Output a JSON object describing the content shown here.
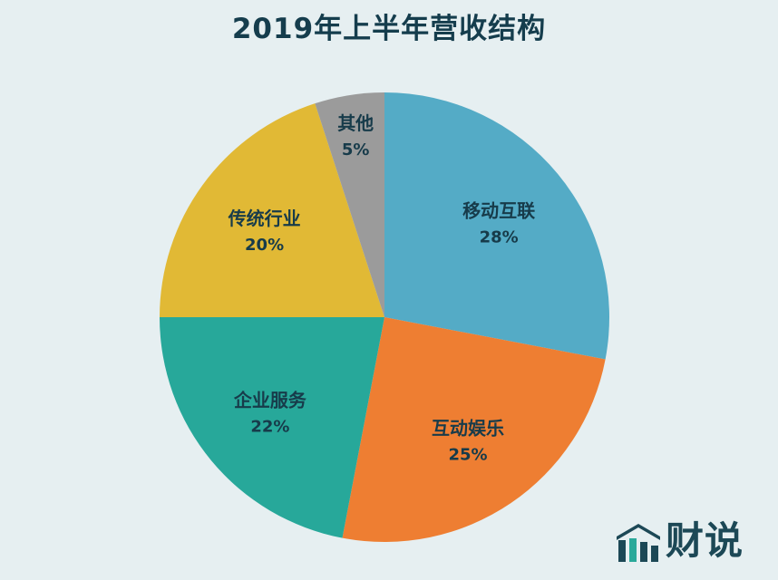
{
  "title": "2019年上半年营收结构",
  "brand": {
    "text": "财说",
    "icon": "bar-chart-logo-icon",
    "colors": [
      "#1c4856",
      "#2aa99a"
    ]
  },
  "chart_data": {
    "type": "pie",
    "title": "2019年上半年营收结构",
    "start_angle_deg": 0,
    "direction": "clockwise",
    "slices": [
      {
        "label": "移动互联",
        "value": 28,
        "value_label": "28%",
        "color": "#54abc6"
      },
      {
        "label": "互动娱乐",
        "value": 25,
        "value_label": "25%",
        "color": "#ee7e32"
      },
      {
        "label": "企业服务",
        "value": 22,
        "value_label": "22%",
        "color": "#27a89a"
      },
      {
        "label": "传统行业",
        "value": 20,
        "value_label": "20%",
        "color": "#e1b935"
      },
      {
        "label": "其他",
        "value": 5,
        "value_label": "5%",
        "color": "#9b9b9b"
      }
    ]
  }
}
